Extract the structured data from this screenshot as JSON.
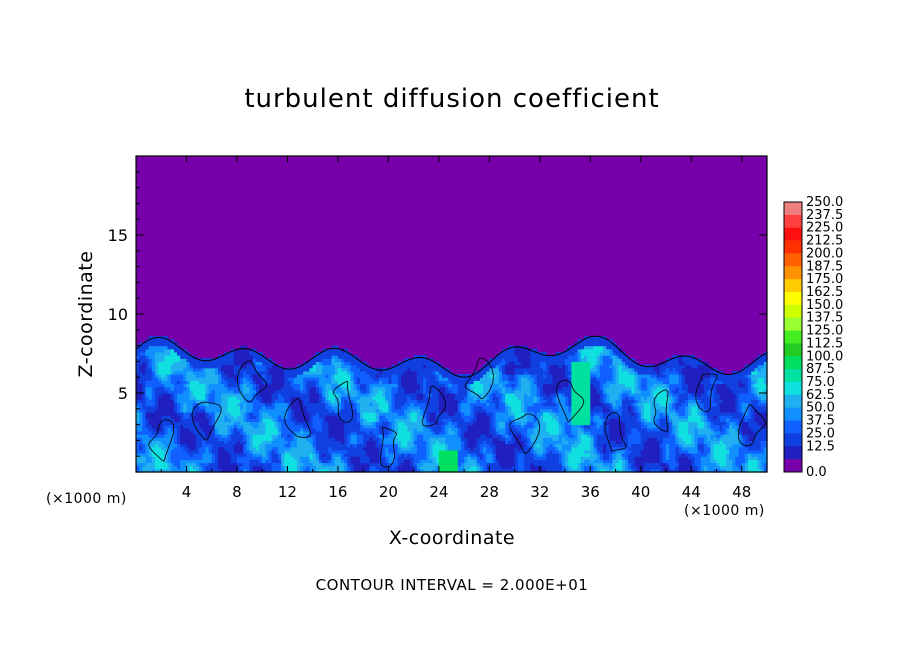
{
  "chart_data": {
    "type": "heatmap",
    "title": "turbulent diffusion coefficient",
    "xlabel": "X-coordinate",
    "ylabel": "Z-coordinate",
    "x_unit": "(×1000 m)",
    "xlim": [
      0,
      50
    ],
    "ylim": [
      0,
      20
    ],
    "x_ticks": [
      "4",
      "8",
      "12",
      "16",
      "20",
      "24",
      "28",
      "32",
      "36",
      "40",
      "44",
      "48"
    ],
    "y_ticks": [
      "5",
      "10",
      "15"
    ],
    "contour_interval": "CONTOUR INTERVAL = 2.000E+01",
    "colorbar": {
      "labels": [
        "250.0",
        "237.5",
        "225.0",
        "212.5",
        "200.0",
        "187.5",
        "175.0",
        "162.5",
        "150.0",
        "137.5",
        "125.0",
        "112.5",
        "100.0",
        "87.5",
        "75.0",
        "62.5",
        "50.0",
        "37.5",
        "25.0",
        "12.5",
        "0.0"
      ],
      "colors": [
        "#f08080",
        "#ff4040",
        "#ff1010",
        "#ff3000",
        "#ff6000",
        "#ff9000",
        "#ffcc00",
        "#ffff00",
        "#ccff00",
        "#99ff33",
        "#44ee22",
        "#22cc22",
        "#00e060",
        "#00e0a0",
        "#10e0e0",
        "#20b0f0",
        "#1090ff",
        "#1060ff",
        "#1040e0",
        "#2020c0",
        "#7700aa"
      ]
    },
    "field_summary": "Background 0.0 above about z = 8 km; turbulent layer from z = 0 to about 8 km with values mostly 12.5 to 62.5, small pockets up to about 100 near x = 25 and x = 35-36"
  }
}
